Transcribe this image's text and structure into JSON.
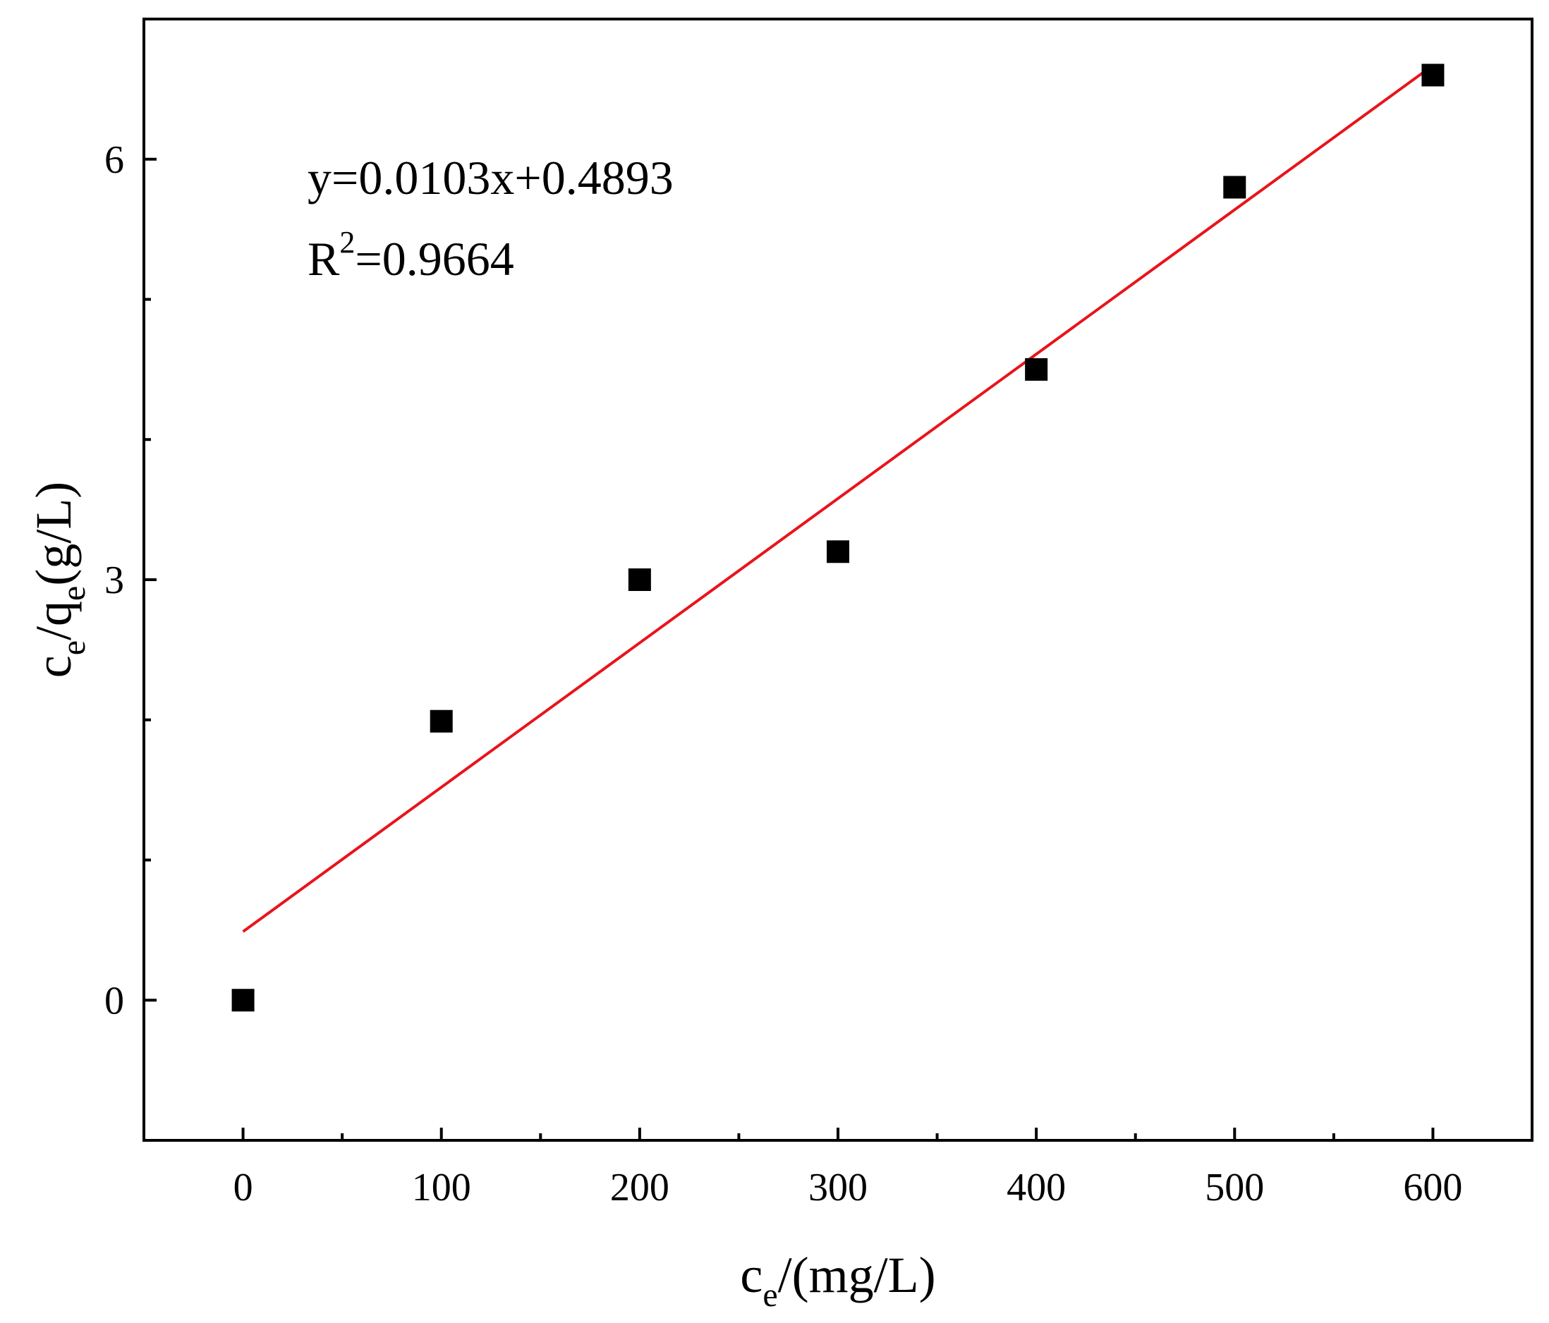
{
  "chart_data": {
    "type": "scatter",
    "x": [
      0,
      100,
      200,
      300,
      400,
      500,
      600
    ],
    "y": [
      0.0,
      1.99,
      3.0,
      3.2,
      4.5,
      5.8,
      6.6
    ],
    "xlim": [
      -50,
      650
    ],
    "ylim": [
      -1,
      7
    ],
    "xticks": [
      "0",
      "100",
      "200",
      "300",
      "400",
      "500",
      "600"
    ],
    "xtick_values": [
      0,
      100,
      200,
      300,
      400,
      500,
      600
    ],
    "xminor_values": [
      50,
      150,
      250,
      350,
      450,
      550
    ],
    "yticks": [
      "0",
      "3",
      "6"
    ],
    "ytick_values": [
      0,
      3,
      6
    ],
    "yminor_values": [
      1,
      2,
      4,
      5
    ],
    "xlabel": {
      "main": "c",
      "sub": "e",
      "rest": "/(mg/L)"
    },
    "ylabel": {
      "p1": "c",
      "s1": "e",
      "p2": "/q",
      "s2": "e",
      "p3": "(g/L)"
    },
    "fit": {
      "slope": 0.0103,
      "intercept": 0.4893,
      "x_range": [
        0,
        600
      ],
      "color": "#e8141b"
    },
    "annotations": {
      "equation": "y=0.0103x+0.4893",
      "r2_prefix": "R",
      "r2_sup": "2",
      "r2_value": "=0.9664"
    },
    "marker": {
      "shape": "square",
      "color": "#000000"
    },
    "grid": false,
    "legend": "none"
  }
}
